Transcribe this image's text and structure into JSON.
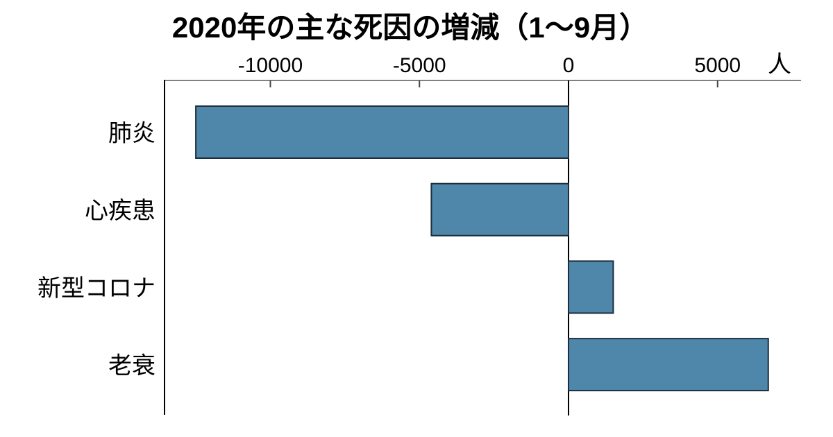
{
  "chart_data": {
    "type": "bar",
    "orientation": "horizontal",
    "title": "2020年の主な死因の増減（1〜9月）",
    "unit_label": "人",
    "categories": [
      "肺炎",
      "心疾患",
      "新型コロナ",
      "老衰"
    ],
    "slugs": [
      "pneumonia",
      "heart-disease",
      "covid19",
      "senility"
    ],
    "values": [
      -12500,
      -4600,
      1500,
      6700
    ],
    "x_ticks": [
      -10000,
      -5000,
      0,
      5000
    ],
    "x_tick_labels": [
      "-10000",
      "-5000",
      "0",
      "5000"
    ],
    "xlim": [
      -13550,
      7800
    ],
    "axis_position": "top",
    "grid": false,
    "legend": "none",
    "colors": {
      "bar_fill": "#4e87aa",
      "bar_border": "#1d2d3c",
      "axis_line": "#808080",
      "tick_mark": "#444444",
      "frame_line": "#000000",
      "zero_line": "#000000",
      "text": "#000000"
    }
  }
}
